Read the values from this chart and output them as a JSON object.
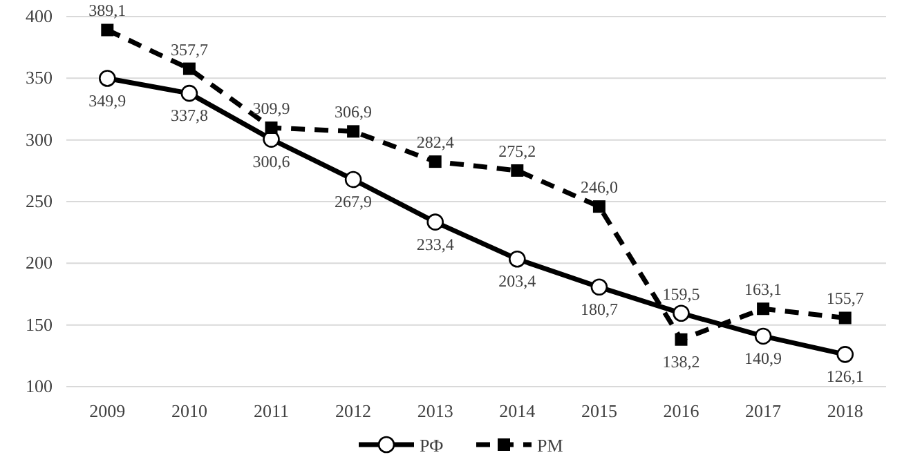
{
  "chart_data": {
    "type": "line",
    "categories": [
      "2009",
      "2010",
      "2011",
      "2012",
      "2013",
      "2014",
      "2015",
      "2016",
      "2017",
      "2018"
    ],
    "series": [
      {
        "name": "РФ",
        "color": "#000000",
        "marker": "circle",
        "line_style": "solid",
        "values": [
          349.9,
          337.8,
          300.6,
          267.9,
          233.4,
          203.4,
          180.7,
          159.5,
          140.9,
          126.1
        ],
        "value_labels": [
          "349,9",
          "337,8",
          "300,6",
          "267,9",
          "233,4",
          "203,4",
          "180,7",
          "159,5",
          "140,9",
          "126,1"
        ]
      },
      {
        "name": "РМ",
        "color": "#000000",
        "marker": "square",
        "line_style": "dashed",
        "values": [
          389.1,
          357.7,
          309.9,
          306.9,
          282.4,
          275.2,
          246.0,
          138.2,
          163.1,
          155.7
        ],
        "value_labels": [
          "389,1",
          "357,7",
          "309,9",
          "306,9",
          "282,4",
          "275,2",
          "246,0",
          "138,2",
          "163,1",
          "155,7"
        ]
      }
    ],
    "ylim": [
      100,
      400
    ],
    "yticks": [
      100,
      150,
      200,
      250,
      300,
      350,
      400
    ],
    "grid": "y",
    "legend": "bottom"
  }
}
